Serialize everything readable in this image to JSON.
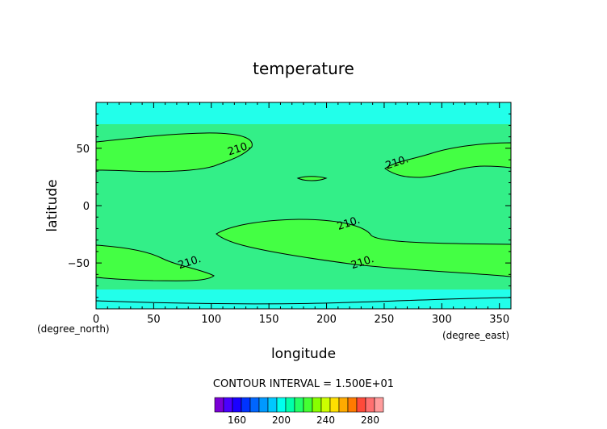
{
  "chart_data": {
    "type": "heatmap",
    "title": "temperature",
    "xlabel": "longitude",
    "ylabel": "latitude",
    "x_unit": "(degree_east)",
    "y_unit": "(degree_north)",
    "xlim": [
      0,
      360
    ],
    "ylim": [
      -90,
      90
    ],
    "x_ticks": [
      0,
      50,
      100,
      150,
      200,
      250,
      300,
      350
    ],
    "y_ticks": [
      -50,
      0,
      50
    ],
    "contour_interval_text": "CONTOUR INTERVAL = 1.500E+01",
    "contour_labels": [
      {
        "text": "210.",
        "lon": 125,
        "lat": 47
      },
      {
        "text": "210.",
        "lon": 262,
        "lat": 35
      },
      {
        "text": "210.",
        "lon": 220,
        "lat": -18
      },
      {
        "text": "210.",
        "lon": 82,
        "lat": -52
      },
      {
        "text": "210.",
        "lon": 232,
        "lat": -52
      }
    ],
    "colorbar": {
      "colors": [
        "#7a00d6",
        "#4a00ff",
        "#1a00ff",
        "#0033ff",
        "#0066ff",
        "#0099ff",
        "#00c8ff",
        "#00ffee",
        "#00ffaa",
        "#22ff66",
        "#44ff33",
        "#88ff00",
        "#ccff00",
        "#ffe000",
        "#ffaa00",
        "#ff7a00",
        "#ff4a3a",
        "#ff7070",
        "#ff9c9c"
      ],
      "tick_labels": [
        "160",
        "200",
        "240",
        "280"
      ]
    }
  }
}
